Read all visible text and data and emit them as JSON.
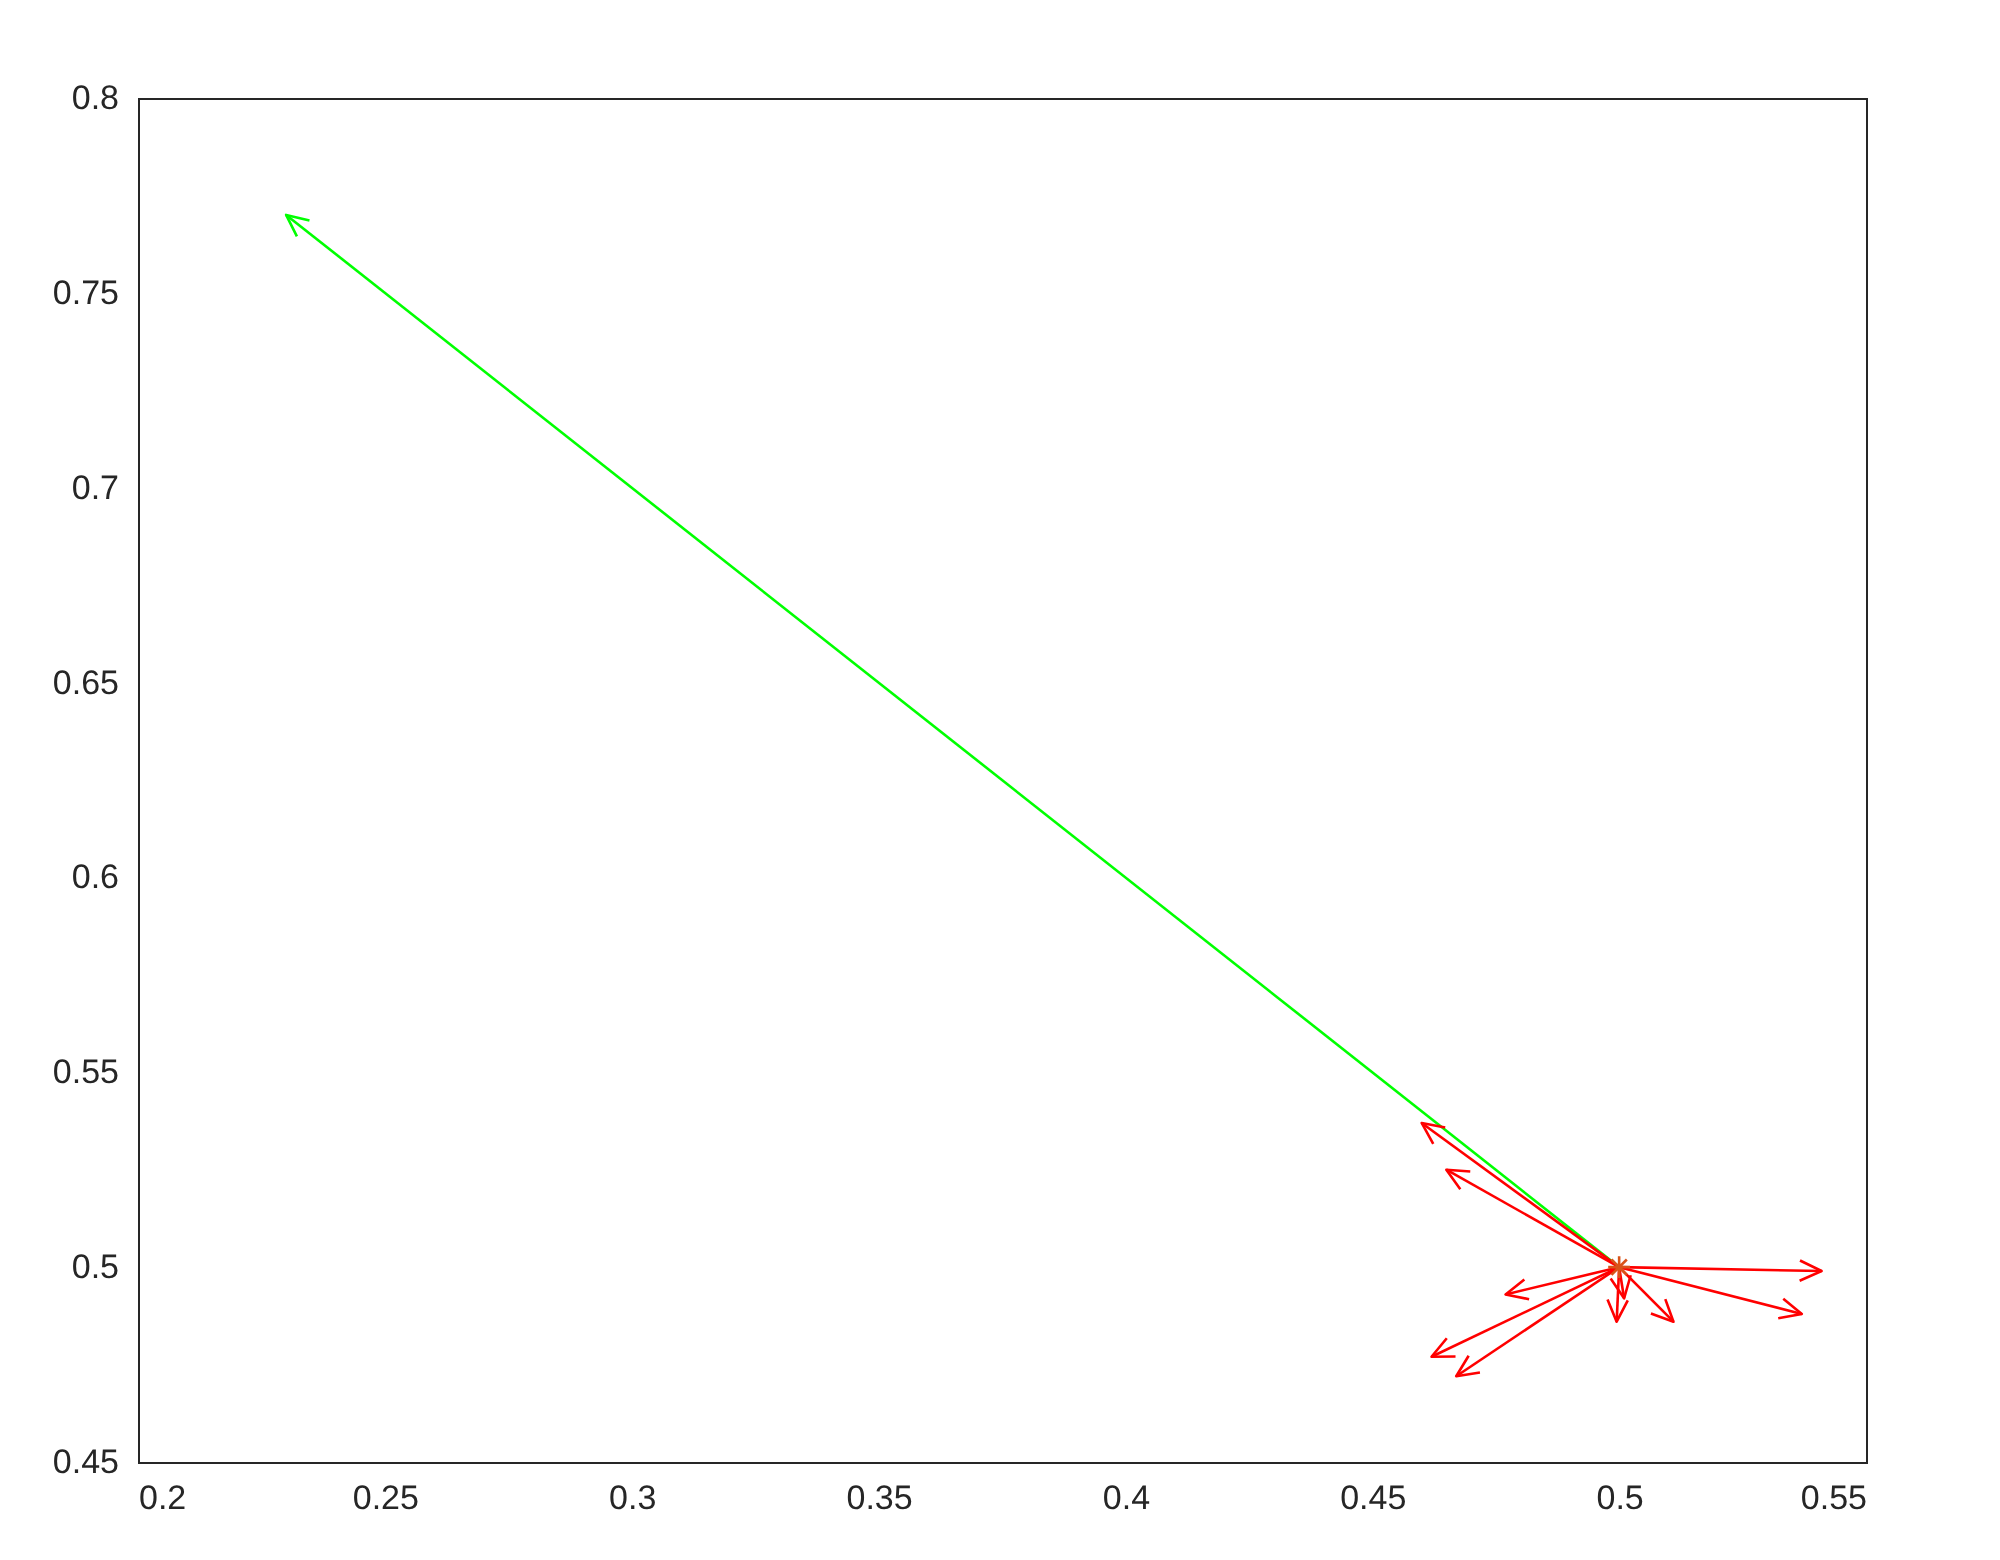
{
  "chart_data": {
    "type": "line",
    "xlim": [
      0.2,
      0.55
    ],
    "ylim": [
      0.45,
      0.8
    ],
    "xticks": [
      0.2,
      0.25,
      0.3,
      0.35,
      0.4,
      0.45,
      0.5,
      0.55
    ],
    "yticks": [
      0.45,
      0.5,
      0.55,
      0.6,
      0.65,
      0.7,
      0.75,
      0.8
    ],
    "grid": false,
    "series": [
      {
        "color": "#00ff00",
        "x": [
          0.5,
          0.23
        ],
        "values": [
          0.5,
          0.77
        ]
      },
      {
        "type": "line",
        "color": "#ff0000",
        "x": [
          0.5,
          0.46
        ],
        "values": [
          0.5,
          0.537
        ]
      },
      {
        "type": "line",
        "color": "#ff0000",
        "x": [
          0.5,
          0.465
        ],
        "values": [
          0.5,
          0.525
        ]
      },
      {
        "type": "line",
        "color": "#ff0000",
        "x": [
          0.5,
          0.541
        ],
        "values": [
          0.5,
          0.499
        ]
      },
      {
        "type": "line",
        "color": "#ff0000",
        "x": [
          0.5,
          0.537
        ],
        "values": [
          0.5,
          0.488
        ]
      },
      {
        "type": "line",
        "color": "#ff0000",
        "x": [
          0.5,
          0.511
        ],
        "values": [
          0.5,
          0.486
        ]
      },
      {
        "type": "line",
        "color": "#ff0000",
        "x": [
          0.5,
          0.4995
        ],
        "values": [
          0.5,
          0.486
        ]
      },
      {
        "type": "line",
        "color": "#ff0000",
        "x": [
          0.5,
          0.501
        ],
        "values": [
          0.5,
          0.492
        ]
      },
      {
        "type": "line",
        "color": "#ff0000",
        "x": [
          0.5,
          0.477
        ],
        "values": [
          0.5,
          0.493
        ]
      },
      {
        "type": "line",
        "color": "#ff0000",
        "x": [
          0.5,
          0.462
        ],
        "values": [
          0.5,
          0.477
        ]
      },
      {
        "type": "line",
        "color": "#ff0000",
        "x": [
          0.5,
          0.467
        ],
        "values": [
          0.5,
          0.472
        ]
      },
      {
        "type": "scatter",
        "color": "#d95319",
        "marker": "cross",
        "x": [
          0.5
        ],
        "values": [
          0.5
        ]
      }
    ]
  }
}
